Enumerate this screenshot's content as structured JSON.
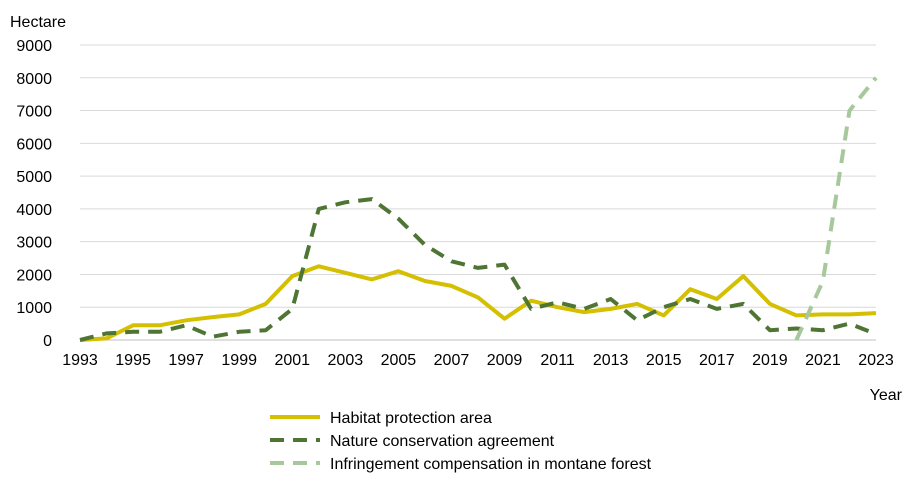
{
  "chart_data": {
    "type": "line",
    "ylabel": "Hectare",
    "xlabel": "Year",
    "ylim": [
      0,
      9000
    ],
    "yticks": [
      0,
      1000,
      2000,
      3000,
      4000,
      5000,
      6000,
      7000,
      8000,
      9000
    ],
    "xlim": [
      1993,
      2023
    ],
    "xticks": [
      1993,
      1995,
      1997,
      1999,
      2001,
      2003,
      2005,
      2007,
      2009,
      2011,
      2013,
      2015,
      2017,
      2019,
      2021,
      2023
    ],
    "grid": "horizontal",
    "legend_position": "bottom",
    "series": [
      {
        "name": "Habitat protection area",
        "color": "#d4bf00",
        "style": "solid",
        "x": [
          1993,
          1994,
          1995,
          1996,
          1997,
          1998,
          1999,
          2000,
          2001,
          2002,
          2003,
          2004,
          2005,
          2006,
          2007,
          2008,
          2009,
          2010,
          2011,
          2012,
          2013,
          2014,
          2015,
          2016,
          2017,
          2018,
          2019,
          2020,
          2021,
          2022,
          2023
        ],
        "values": [
          0,
          50,
          450,
          450,
          600,
          700,
          780,
          1100,
          1950,
          2250,
          2050,
          1850,
          2100,
          1800,
          1650,
          1300,
          650,
          1200,
          1000,
          850,
          950,
          1100,
          750,
          1550,
          1250,
          1950,
          1100,
          750,
          780,
          780,
          820
        ]
      },
      {
        "name": "Nature conservation agreement",
        "color": "#4f7535",
        "style": "dashed",
        "x": [
          1993,
          1994,
          1995,
          1996,
          1997,
          1998,
          1999,
          2000,
          2001,
          2002,
          2003,
          2004,
          2005,
          2006,
          2007,
          2008,
          2009,
          2010,
          2011,
          2012,
          2013,
          2014,
          2015,
          2016,
          2017,
          2018,
          2019,
          2020,
          2021,
          2022,
          2023
        ],
        "values": [
          0,
          200,
          250,
          250,
          450,
          100,
          250,
          300,
          950,
          4000,
          4200,
          4300,
          3700,
          2900,
          2400,
          2200,
          2300,
          950,
          1150,
          950,
          1250,
          600,
          1000,
          1250,
          950,
          1100,
          300,
          350,
          300,
          500,
          180
        ]
      },
      {
        "name": "Infringement compensation in montane forest",
        "color": "#a7c89b",
        "style": "dashed",
        "x": [
          2020,
          2021,
          2022,
          2023
        ],
        "values": [
          0,
          1800,
          7000,
          8000
        ]
      }
    ]
  }
}
